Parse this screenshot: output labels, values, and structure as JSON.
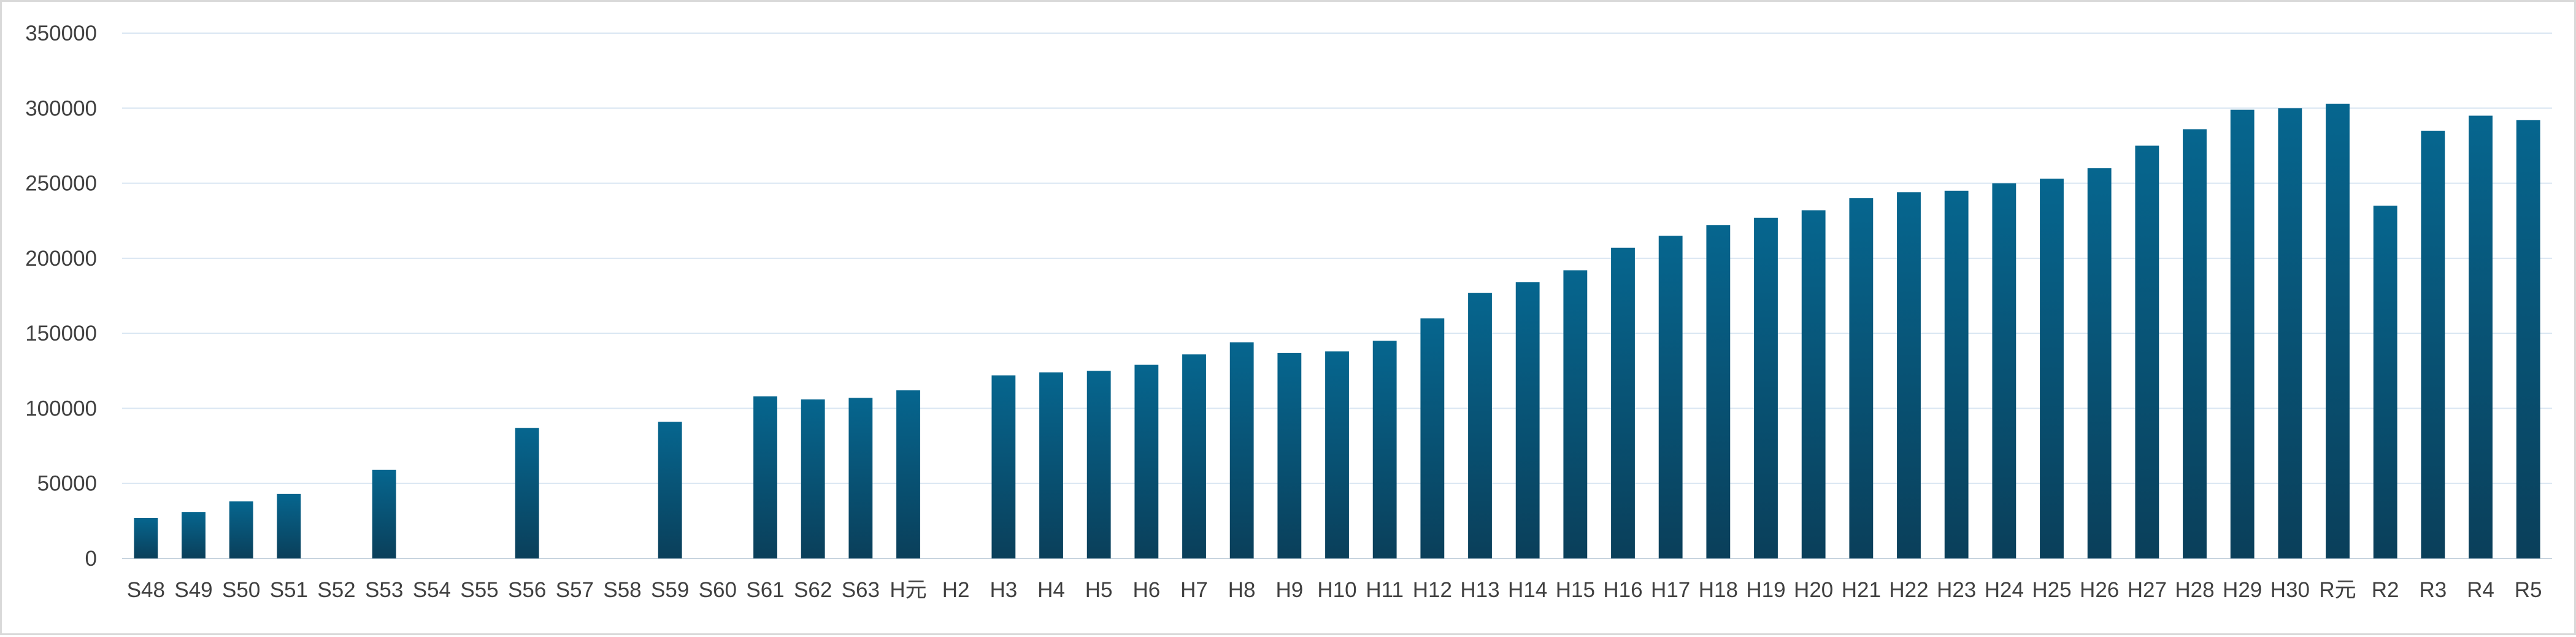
{
  "chart_data": {
    "type": "bar",
    "title": "",
    "xlabel": "",
    "ylabel": "",
    "ylim": [
      0,
      350000
    ],
    "yticks": [
      0,
      50000,
      100000,
      150000,
      200000,
      250000,
      300000,
      350000
    ],
    "grid": true,
    "legend": "none",
    "colors": {
      "bar_top": "#06668f",
      "bar_bottom": "#0a3f5a",
      "grid": "#d9e6f2",
      "text": "#404040"
    },
    "categories": [
      "S48",
      "S49",
      "S50",
      "S51",
      "S52",
      "S53",
      "S54",
      "S55",
      "S56",
      "S57",
      "S58",
      "S59",
      "S60",
      "S61",
      "S62",
      "S63",
      "H元",
      "H2",
      "H3",
      "H4",
      "H5",
      "H6",
      "H7",
      "H8",
      "H9",
      "H10",
      "H11",
      "H12",
      "H13",
      "H14",
      "H15",
      "H16",
      "H17",
      "H18",
      "H19",
      "H20",
      "H21",
      "H22",
      "H23",
      "H24",
      "H25",
      "H26",
      "H27",
      "H28",
      "H29",
      "H30",
      "R元",
      "R2",
      "R3",
      "R4",
      "R5"
    ],
    "values": [
      27000,
      31000,
      38000,
      43000,
      null,
      59000,
      null,
      null,
      87000,
      null,
      null,
      91000,
      null,
      108000,
      106000,
      107000,
      112000,
      null,
      122000,
      124000,
      125000,
      129000,
      136000,
      144000,
      137000,
      138000,
      145000,
      160000,
      177000,
      184000,
      192000,
      207000,
      215000,
      222000,
      227000,
      232000,
      240000,
      244000,
      245000,
      250000,
      253000,
      260000,
      275000,
      286000,
      299000,
      300000,
      303000,
      235000,
      285000,
      295000,
      292000
    ]
  }
}
